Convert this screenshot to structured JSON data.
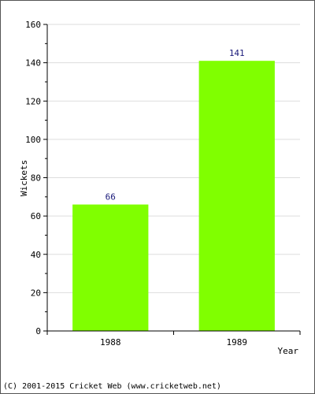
{
  "chart_data": {
    "type": "bar",
    "categories": [
      "1988",
      "1989"
    ],
    "values": [
      66,
      141
    ],
    "data_labels": [
      "66",
      "141"
    ],
    "xlabel": "Year",
    "ylabel": "Wickets",
    "ylim": [
      0,
      160
    ],
    "yticks": [
      0,
      20,
      40,
      60,
      80,
      100,
      120,
      140,
      160
    ],
    "ytick_labels": [
      "0",
      "20",
      "40",
      "60",
      "80",
      "100",
      "120",
      "140",
      "160"
    ],
    "grid": true,
    "bar_color": "#80ff00",
    "grid_color": "#dddddd"
  },
  "footer": {
    "copyright": "(C) 2001-2015 Cricket Web (www.cricketweb.net)"
  }
}
